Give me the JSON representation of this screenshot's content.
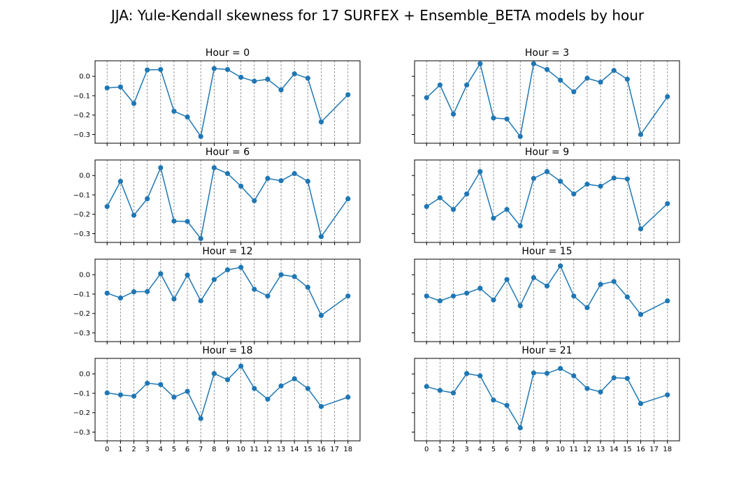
{
  "title": "JJA: Yule-Kendall skewness for 17 SURFEX + Ensemble_BETA models by hour",
  "colors": {
    "line": "#1f77b4",
    "gridline": "#808080",
    "axes": "#000000"
  },
  "chart_data": {
    "type": "line",
    "xlim": [
      -0.9,
      18.9
    ],
    "ylim": [
      -0.345,
      0.08
    ],
    "x_ticks": [
      0,
      1,
      2,
      3,
      4,
      5,
      6,
      7,
      8,
      9,
      10,
      11,
      12,
      13,
      14,
      15,
      16,
      17,
      18
    ],
    "x_tick_labels": [
      "0",
      "1",
      "2",
      "3",
      "4",
      "5",
      "6",
      "7",
      "8",
      "9",
      "10",
      "11",
      "12",
      "13",
      "14",
      "15",
      "16",
      "17",
      "18"
    ],
    "y_ticks": [
      0.0,
      -0.1,
      -0.2,
      -0.3
    ],
    "y_tick_labels": [
      "0.0",
      "−0.1",
      "−0.2",
      "−0.3"
    ],
    "grid": "vertical dashed lines at each x tick",
    "marker": "circle",
    "panels": [
      {
        "title": "Hour = 0",
        "x": [
          0,
          1,
          2,
          3,
          4,
          5,
          6,
          7,
          8,
          9,
          10,
          11,
          12,
          13,
          14,
          15,
          16,
          18
        ],
        "y": [
          -0.06,
          -0.055,
          -0.14,
          0.033,
          0.035,
          -0.18,
          -0.21,
          -0.31,
          0.04,
          0.035,
          -0.005,
          -0.025,
          -0.015,
          -0.07,
          0.013,
          -0.01,
          -0.235,
          -0.095
        ]
      },
      {
        "title": "Hour = 3",
        "x": [
          0,
          1,
          2,
          3,
          4,
          5,
          6,
          7,
          8,
          9,
          10,
          11,
          12,
          13,
          14,
          15,
          16,
          18
        ],
        "y": [
          -0.11,
          -0.045,
          -0.195,
          -0.045,
          0.065,
          -0.215,
          -0.22,
          -0.31,
          0.065,
          0.035,
          -0.02,
          -0.08,
          -0.01,
          -0.03,
          0.03,
          -0.015,
          -0.3,
          -0.105
        ]
      },
      {
        "title": "Hour = 6",
        "x": [
          0,
          1,
          2,
          3,
          4,
          5,
          6,
          7,
          8,
          9,
          10,
          11,
          12,
          13,
          14,
          15,
          16,
          18
        ],
        "y": [
          -0.16,
          -0.03,
          -0.205,
          -0.12,
          0.04,
          -0.235,
          -0.237,
          -0.325,
          0.04,
          0.01,
          -0.055,
          -0.13,
          -0.015,
          -0.027,
          0.01,
          -0.03,
          -0.315,
          -0.12
        ]
      },
      {
        "title": "Hour = 9",
        "x": [
          0,
          1,
          2,
          3,
          4,
          5,
          6,
          7,
          8,
          9,
          10,
          11,
          12,
          13,
          14,
          15,
          16,
          18
        ],
        "y": [
          -0.16,
          -0.115,
          -0.175,
          -0.095,
          0.02,
          -0.22,
          -0.175,
          -0.26,
          -0.015,
          0.02,
          -0.03,
          -0.095,
          -0.045,
          -0.055,
          -0.013,
          -0.018,
          -0.275,
          -0.145
        ]
      },
      {
        "title": "Hour = 12",
        "x": [
          0,
          1,
          2,
          3,
          4,
          5,
          6,
          7,
          8,
          9,
          10,
          11,
          12,
          13,
          14,
          15,
          16,
          18
        ],
        "y": [
          -0.095,
          -0.12,
          -0.088,
          -0.087,
          0.005,
          -0.125,
          -0.002,
          -0.135,
          -0.025,
          0.025,
          0.038,
          -0.075,
          -0.11,
          0.0,
          -0.01,
          -0.065,
          -0.21,
          -0.11
        ]
      },
      {
        "title": "Hour = 15",
        "x": [
          0,
          1,
          2,
          3,
          4,
          5,
          6,
          7,
          8,
          9,
          10,
          11,
          12,
          13,
          14,
          15,
          16,
          18
        ],
        "y": [
          -0.11,
          -0.135,
          -0.11,
          -0.095,
          -0.07,
          -0.13,
          -0.025,
          -0.16,
          -0.015,
          -0.058,
          0.045,
          -0.11,
          -0.17,
          -0.05,
          -0.035,
          -0.115,
          -0.205,
          -0.135
        ]
      },
      {
        "title": "Hour = 18",
        "x": [
          0,
          1,
          2,
          3,
          4,
          5,
          6,
          7,
          8,
          9,
          10,
          11,
          12,
          13,
          14,
          15,
          16,
          18
        ],
        "y": [
          -0.098,
          -0.108,
          -0.115,
          -0.048,
          -0.055,
          -0.12,
          -0.09,
          -0.23,
          0.002,
          -0.03,
          0.04,
          -0.075,
          -0.13,
          -0.062,
          -0.025,
          -0.075,
          -0.168,
          -0.12
        ]
      },
      {
        "title": "Hour = 21",
        "x": [
          0,
          1,
          2,
          3,
          4,
          5,
          6,
          7,
          8,
          9,
          10,
          11,
          12,
          13,
          14,
          15,
          16,
          18
        ],
        "y": [
          -0.065,
          -0.085,
          -0.098,
          0.002,
          -0.01,
          -0.135,
          -0.162,
          -0.278,
          0.005,
          0.003,
          0.028,
          -0.01,
          -0.075,
          -0.093,
          -0.02,
          -0.023,
          -0.153,
          -0.108
        ]
      }
    ]
  }
}
